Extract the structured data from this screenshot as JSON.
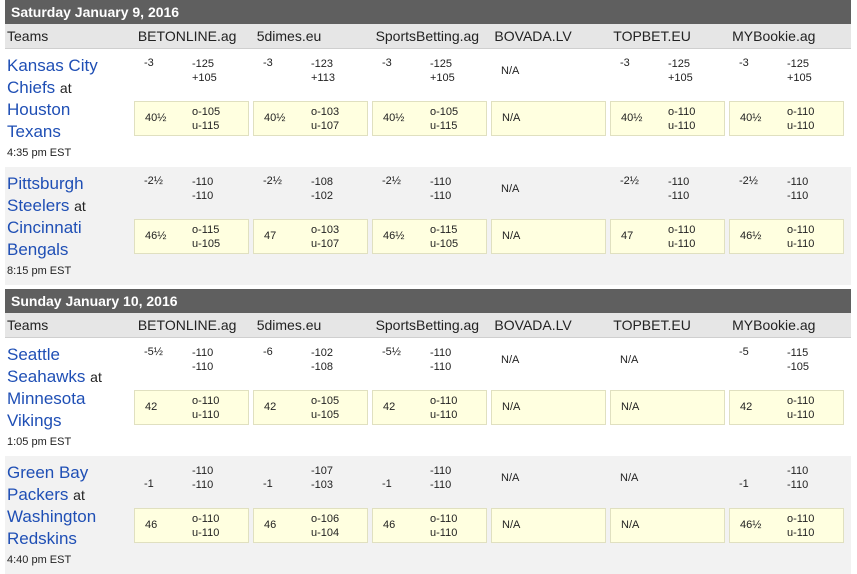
{
  "books": [
    "BETONLINE.ag",
    "5dimes.eu",
    "SportsBetting.ag",
    "BOVADA.LV",
    "TOPBET.EU",
    "MYBookie.ag"
  ],
  "teams_header": "Teams",
  "days": [
    {
      "title": "Saturday January 9, 2016",
      "games": [
        {
          "team1_a": "Kansas City",
          "team1_b": "Chiefs",
          "at": "at",
          "team2_a": "Houston",
          "team2_b": "Texans",
          "time": "4:35 pm EST",
          "lines": [
            {
              "spread": "-3",
              "ml1": "-125",
              "ml2": "+105",
              "total": "40½",
              "over": "o-105",
              "under": "u-115"
            },
            {
              "spread": "-3",
              "ml1": "-123",
              "ml2": "+113",
              "total": "40½",
              "over": "o-103",
              "under": "u-107"
            },
            {
              "spread": "-3",
              "ml1": "-125",
              "ml2": "+105",
              "total": "40½",
              "over": "o-105",
              "under": "u-115"
            },
            {
              "na": "N/A",
              "na_total": "N/A"
            },
            {
              "spread": "-3",
              "ml1": "-125",
              "ml2": "+105",
              "total": "40½",
              "over": "o-110",
              "under": "u-110"
            },
            {
              "spread": "-3",
              "ml1": "-125",
              "ml2": "+105",
              "total": "40½",
              "over": "o-110",
              "under": "u-110"
            }
          ]
        },
        {
          "team1_a": "Pittsburgh",
          "team1_b": "Steelers",
          "at": "at",
          "team2_a": "Cincinnati",
          "team2_b": "Bengals",
          "time": "8:15 pm EST",
          "lines": [
            {
              "spread": "-2½",
              "ml1": "-110",
              "ml2": "-110",
              "total": "46½",
              "over": "o-115",
              "under": "u-105"
            },
            {
              "spread": "-2½",
              "ml1": "-108",
              "ml2": "-102",
              "total": "47",
              "over": "o-103",
              "under": "u-107"
            },
            {
              "spread": "-2½",
              "ml1": "-110",
              "ml2": "-110",
              "total": "46½",
              "over": "o-115",
              "under": "u-105"
            },
            {
              "na": "N/A",
              "na_total": "N/A"
            },
            {
              "spread": "-2½",
              "ml1": "-110",
              "ml2": "-110",
              "total": "47",
              "over": "o-110",
              "under": "u-110"
            },
            {
              "spread": "-2½",
              "ml1": "-110",
              "ml2": "-110",
              "total": "46½",
              "over": "o-110",
              "under": "u-110"
            }
          ]
        }
      ]
    },
    {
      "title": "Sunday January 10, 2016",
      "games": [
        {
          "team1_a": "Seattle",
          "team1_b": "Seahawks",
          "at": "at",
          "team2_a": "Minnesota",
          "team2_b": "Vikings",
          "time": "1:05 pm EST",
          "lines": [
            {
              "spread": "-5½",
              "ml1": "-110",
              "ml2": "-110",
              "total": "42",
              "over": "o-110",
              "under": "u-110"
            },
            {
              "spread": "-6",
              "ml1": "-102",
              "ml2": "-108",
              "total": "42",
              "over": "o-105",
              "under": "u-105"
            },
            {
              "spread": "-5½",
              "ml1": "-110",
              "ml2": "-110",
              "total": "42",
              "over": "o-110",
              "under": "u-110"
            },
            {
              "na": "N/A",
              "na_total": "N/A"
            },
            {
              "na": "N/A",
              "na_total": "N/A"
            },
            {
              "spread": "-5",
              "ml1": "-115",
              "ml2": "-105",
              "total": "42",
              "over": "o-110",
              "under": "u-110"
            }
          ]
        },
        {
          "team1_a": "Green Bay",
          "team1_b": "Packers",
          "at": "at",
          "team2_a": "Washington",
          "team2_b": "Redskins",
          "time": "4:40 pm EST",
          "lines": [
            {
              "spread": "-1",
              "ml1": "-110",
              "ml2": "-110",
              "total": "46",
              "over": "o-110",
              "under": "u-110"
            },
            {
              "spread": "-1",
              "ml1": "-107",
              "ml2": "-103",
              "total": "46",
              "over": "o-106",
              "under": "u-104"
            },
            {
              "spread": "-1",
              "ml1": "-110",
              "ml2": "-110",
              "total": "46",
              "over": "o-110",
              "under": "u-110"
            },
            {
              "na": "N/A",
              "na_total": "N/A"
            },
            {
              "na": "N/A",
              "na_total": "N/A"
            },
            {
              "spread": "-1",
              "ml1": "-110",
              "ml2": "-110",
              "total": "46½",
              "over": "o-110",
              "under": "u-110"
            }
          ]
        }
      ]
    }
  ]
}
